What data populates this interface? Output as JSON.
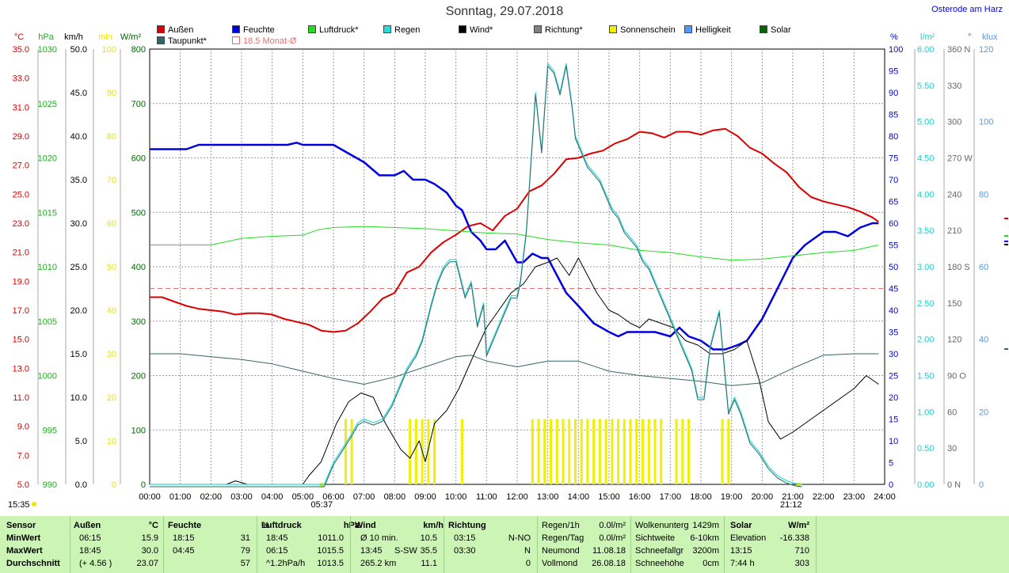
{
  "header": {
    "title": "Sonntag, 29.07.2018",
    "location": "Osterode am Harz"
  },
  "legend": [
    {
      "label": "Außen",
      "color": "#dd0000"
    },
    {
      "label": "Feuchte",
      "color": "#0000dd"
    },
    {
      "label": "Luftdruck*",
      "color": "#22dd22"
    },
    {
      "label": "Regen",
      "color": "#22dddd"
    },
    {
      "label": "Wind*",
      "color": "#000000"
    },
    {
      "label": "Richtung*",
      "color": "#808080"
    },
    {
      "label": "Sonnenschein",
      "color": "#f0f000"
    },
    {
      "label": "Helligkeit",
      "color": "#5599ff"
    },
    {
      "label": "Solar",
      "color": "#006600"
    },
    {
      "label": "Taupunkt*",
      "color": "#336666"
    },
    {
      "label": "18.5 Monat-Ø",
      "color": "#e07070"
    }
  ],
  "axes": {
    "temp_unit": "°C",
    "hpa_unit": "hPa",
    "kmh_unit": "km/h",
    "min_unit": "min",
    "wm2_unit": "W/m²",
    "pct_unit": "%",
    "lm2_unit": "l/m²",
    "deg_unit": "°",
    "klux_unit": "klux",
    "temp_ticks": [
      "35.0",
      "33.0",
      "31.0",
      "29.0",
      "27.0",
      "25.0",
      "23.0",
      "21.0",
      "19.0",
      "17.0",
      "15.0",
      "13.0",
      "11.0",
      "9.0",
      "7.0",
      "5.0"
    ],
    "hpa_ticks": [
      "1030",
      "1025",
      "1020",
      "1015",
      "1010",
      "1005",
      "1000",
      "995",
      "990"
    ],
    "kmh_ticks": [
      "50.0",
      "45.0",
      "40.0",
      "35.0",
      "30.0",
      "25.0",
      "20.0",
      "15.0",
      "10.0",
      "5.0",
      "0.0"
    ],
    "min_ticks": [
      "100",
      "90",
      "80",
      "70",
      "60",
      "50",
      "40",
      "30",
      "20",
      "10",
      "0"
    ],
    "wm2_ticks": [
      "800",
      "700",
      "600",
      "500",
      "400",
      "300",
      "200",
      "100",
      "0"
    ],
    "pct_ticks": [
      "100",
      "95",
      "90",
      "85",
      "80",
      "75",
      "70",
      "65",
      "60",
      "55",
      "50",
      "45",
      "40",
      "35",
      "30",
      "25",
      "20",
      "15",
      "10",
      "5",
      "0"
    ],
    "lm2_ticks": [
      "6.00",
      "5.50",
      "5.00",
      "4.50",
      "4.00",
      "3.50",
      "3.00",
      "2.50",
      "2.00",
      "1.50",
      "1.00",
      "0.50",
      "0.00"
    ],
    "deg_ticks": [
      "360 N",
      "330",
      "300",
      "270 W",
      "240",
      "210",
      "180 S",
      "150",
      "120",
      "90 O",
      "60",
      "30",
      "0 N"
    ],
    "klux_ticks": [
      "120",
      "100",
      "80",
      "60",
      "40",
      "20",
      "0"
    ],
    "time_ticks": [
      "00:00",
      "01:00",
      "02:00",
      "03:00",
      "04:00",
      "05:00",
      "06:00",
      "07:00",
      "08:00",
      "09:00",
      "10:00",
      "11:00",
      "12:00",
      "13:00",
      "14:00",
      "15:00",
      "16:00",
      "17:00",
      "18:00",
      "19:00",
      "20:00",
      "21:00",
      "22:00",
      "23:00",
      "24:00"
    ],
    "sunrise": "05:37",
    "sunset": "21:12",
    "current_time": "15:35"
  },
  "chart_data": {
    "type": "line",
    "x_unit": "hours",
    "series": [
      {
        "name": "Außen",
        "color": "#dd0000",
        "axis": "temp",
        "x": [
          0,
          0.4,
          0.8,
          1.2,
          1.6,
          2,
          2.4,
          2.8,
          3.2,
          3.6,
          4,
          4.4,
          4.8,
          5.2,
          5.6,
          6,
          6.4,
          6.8,
          7.2,
          7.6,
          8,
          8.4,
          8.8,
          9.2,
          9.6,
          10,
          10.4,
          10.8,
          11.2,
          11.6,
          12,
          12.4,
          12.8,
          13.2,
          13.6,
          14,
          14.4,
          14.8,
          15.2,
          15.6,
          16,
          16.4,
          16.8,
          17.2,
          17.6,
          18,
          18.4,
          18.8,
          19.2,
          19.6,
          20,
          20.4,
          20.8,
          21.2,
          21.6,
          22,
          22.4,
          22.8,
          23.2,
          23.6,
          23.8
        ],
        "y": [
          17.9,
          17.9,
          17.6,
          17.3,
          17.1,
          17.0,
          16.9,
          16.7,
          16.8,
          16.8,
          16.7,
          16.4,
          16.2,
          16.0,
          15.6,
          15.5,
          15.6,
          16.1,
          16.9,
          17.8,
          18.2,
          19.6,
          20.0,
          21.0,
          21.7,
          22.2,
          22.8,
          23.0,
          22.5,
          23.5,
          24.0,
          25.2,
          25.6,
          26.4,
          27.4,
          27.5,
          27.8,
          28.0,
          28.5,
          28.8,
          29.3,
          29.2,
          28.9,
          29.3,
          29.3,
          29.1,
          29.4,
          29.5,
          29.0,
          28.2,
          27.8,
          27.1,
          26.5,
          25.5,
          24.8,
          24.5,
          24.3,
          24.1,
          23.8,
          23.4,
          23.1
        ]
      },
      {
        "name": "Feuchte",
        "color": "#0000dd",
        "axis": "pct",
        "x": [
          0,
          0.6,
          1.2,
          1.6,
          2,
          2.5,
          3,
          3.5,
          4,
          4.5,
          4.8,
          5,
          5.5,
          6,
          6.5,
          7,
          7.5,
          8,
          8.3,
          8.6,
          9,
          9.3,
          9.7,
          10,
          10.2,
          10.5,
          10.8,
          11,
          11.3,
          11.6,
          12,
          12.2,
          12.5,
          12.8,
          13,
          13.3,
          13.6,
          14,
          14.5,
          15,
          15.3,
          15.6,
          16,
          16.5,
          17,
          17.3,
          17.6,
          18,
          18.4,
          18.8,
          19.2,
          19.5,
          20,
          20.5,
          21,
          21.4,
          21.8,
          22,
          22.4,
          22.8,
          23.2,
          23.6,
          23.8
        ],
        "y": [
          77,
          77,
          77,
          78,
          78,
          78,
          78,
          78,
          78,
          78,
          78.5,
          78,
          78,
          78,
          76,
          74,
          71,
          71,
          72,
          70,
          70,
          69,
          67,
          64,
          63,
          58,
          56,
          54,
          54,
          56,
          51,
          51,
          53,
          52,
          52,
          48,
          44,
          41,
          37,
          35,
          34,
          35,
          35,
          35,
          34,
          36,
          34,
          33,
          31,
          31,
          32,
          33,
          38,
          45,
          52,
          55,
          57,
          58,
          58,
          57,
          59,
          60,
          60
        ]
      },
      {
        "name": "Luftdruck*",
        "color": "#22dd22",
        "axis": "hpa",
        "x": [
          0,
          1,
          2,
          2.5,
          3,
          4,
          5,
          5.5,
          6,
          7,
          8,
          9,
          10,
          11,
          12,
          13,
          14,
          15,
          16,
          17,
          18,
          19,
          20,
          21,
          22,
          23,
          23.8
        ],
        "y": [
          1012.0,
          1012.0,
          1012.0,
          1012.3,
          1012.6,
          1012.8,
          1012.9,
          1013.4,
          1013.6,
          1013.7,
          1013.6,
          1013.5,
          1013.3,
          1013.1,
          1013.0,
          1012.5,
          1012.2,
          1012.0,
          1011.5,
          1011.3,
          1010.9,
          1010.6,
          1010.7,
          1011.0,
          1011.3,
          1011.5,
          1012.0
        ]
      },
      {
        "name": "Taupunkt*",
        "color": "#336666",
        "axis": "temp",
        "x": [
          0,
          1,
          2,
          3,
          4,
          5,
          6,
          7,
          8,
          9,
          10,
          10.5,
          11,
          12,
          13,
          14,
          15,
          16,
          17,
          18,
          19,
          20,
          21,
          22,
          23,
          23.8
        ],
        "y": [
          14.0,
          14.0,
          13.8,
          13.6,
          13.3,
          12.8,
          12.3,
          11.9,
          12.4,
          13.1,
          13.8,
          13.9,
          13.5,
          13.1,
          13.5,
          13.5,
          12.8,
          12.5,
          12.3,
          12.1,
          11.8,
          12.0,
          13.0,
          13.9,
          14.0,
          14.0
        ]
      },
      {
        "name": "Wind*",
        "color": "#000000",
        "axis": "kmh",
        "x": [
          0,
          2.5,
          2.8,
          3.2,
          5,
          5.2,
          5.6,
          6.1,
          6.5,
          6.9,
          7.3,
          7.7,
          8.2,
          8.5,
          8.8,
          9,
          9.3,
          9.7,
          10.1,
          10.6,
          11,
          11.4,
          11.8,
          12.2,
          12.6,
          13,
          13.3,
          13.7,
          14,
          14.3,
          14.6,
          15,
          15.3,
          15.7,
          16,
          16.3,
          16.7,
          17.1,
          17.5,
          17.9,
          18.3,
          18.7,
          19.1,
          19.5,
          19.9,
          20.2,
          20.6,
          21,
          21.4,
          21.8,
          22.2,
          22.6,
          23,
          23.4,
          23.8
        ],
        "y": [
          0,
          0,
          0.4,
          0,
          0,
          1,
          2.6,
          7,
          9.5,
          10.5,
          10,
          7,
          4,
          3,
          5,
          2.6,
          7,
          8.5,
          11,
          15,
          18,
          20,
          22,
          23,
          25,
          25.5,
          26,
          24,
          26,
          24,
          22,
          20,
          19.5,
          18.5,
          18,
          19,
          18.5,
          18,
          16.5,
          16,
          15,
          15,
          15.5,
          16.5,
          12,
          7.2,
          5.2,
          6,
          7,
          8,
          9,
          10,
          11,
          12.5,
          11.5
        ]
      },
      {
        "name": "Regen",
        "color": "#22dddd",
        "axis": "lm2",
        "x": [
          0,
          5.7,
          6,
          6.3,
          6.6,
          6.8,
          7,
          7.3,
          7.6,
          7.9,
          8.1,
          8.4,
          8.7,
          8.9,
          9.2,
          9.4,
          9.6,
          9.8,
          10,
          10.3,
          10.5,
          10.7,
          10.9,
          11,
          11.2,
          11.4,
          11.6,
          11.8,
          12,
          12.1,
          12.3,
          12.6,
          12.8,
          13,
          13.2,
          13.4,
          13.6,
          13.8,
          13.9,
          14.1,
          14.3,
          14.5,
          14.7,
          14.9,
          15.1,
          15.3,
          15.5,
          15.7,
          15.9,
          16.1,
          16.3,
          16.5,
          16.7,
          16.9,
          17.1,
          17.3,
          17.5,
          17.7,
          17.9,
          18.1,
          18.3,
          18.6,
          18.9,
          19.1,
          19.3,
          19.6,
          19.9,
          20.2,
          20.5,
          20.8,
          21.1,
          21.3
        ],
        "y": [
          0,
          0,
          0.3,
          0.5,
          0.7,
          0.85,
          0.9,
          0.85,
          0.9,
          1.1,
          1.3,
          1.6,
          1.8,
          2.0,
          2.5,
          2.8,
          3.0,
          3.1,
          3.1,
          2.6,
          2.8,
          2.2,
          2.5,
          1.8,
          2.0,
          2.2,
          2.4,
          2.6,
          2.6,
          2.8,
          3.5,
          5.4,
          4.6,
          5.8,
          5.7,
          5.4,
          5.8,
          5.2,
          4.8,
          4.6,
          4.4,
          4.3,
          4.2,
          4.0,
          3.8,
          3.7,
          3.5,
          3.4,
          3.3,
          3.1,
          3.0,
          2.8,
          2.6,
          2.4,
          2.2,
          2.0,
          1.8,
          1.6,
          1.2,
          1.2,
          1.9,
          2.4,
          1.0,
          1.2,
          1.0,
          0.6,
          0.45,
          0.25,
          0.12,
          0.05,
          0.01,
          0
        ]
      }
    ],
    "sunshine_bars": {
      "name": "Sonnenschein",
      "axis": "min",
      "x": [
        6.4,
        6.6,
        8.5,
        8.7,
        8.9,
        9.1,
        9.3,
        10.2,
        12.5,
        12.7,
        12.9,
        13.1,
        13.3,
        13.5,
        13.7,
        13.9,
        14.1,
        14.3,
        14.5,
        14.7,
        14.9,
        15.1,
        15.3,
        15.5,
        15.7,
        15.9,
        16.1,
        16.3,
        16.5,
        16.7,
        17.2,
        17.4,
        17.6,
        18.7,
        18.9
      ],
      "y": [
        15,
        15,
        15,
        15,
        15,
        15,
        15,
        15,
        15,
        15,
        15,
        15,
        15,
        15,
        15,
        15,
        15,
        15,
        15,
        15,
        15,
        15,
        15,
        15,
        15,
        15,
        15,
        15,
        15,
        15,
        15,
        15,
        15,
        15,
        15
      ]
    },
    "reference_line": {
      "name": "18.5 Monat-Ø",
      "axis": "temp",
      "y": 18.5
    },
    "xlim": [
      0,
      24
    ],
    "ylims": {
      "temp": [
        5,
        35
      ],
      "hpa": [
        990,
        1030
      ],
      "kmh": [
        0,
        50
      ],
      "min": [
        0,
        100
      ],
      "wm2": [
        0,
        800
      ],
      "pct": [
        0,
        100
      ],
      "lm2": [
        0,
        6
      ],
      "deg": [
        0,
        360
      ],
      "klux": [
        0,
        120
      ]
    },
    "grid": true
  },
  "stats": {
    "headers": [
      {
        "label": "Sensor",
        "unit": ""
      },
      {
        "label": "Außen",
        "unit": "°C"
      },
      {
        "label": "Feuchte",
        "unit": "%"
      },
      {
        "label": "Luftdruck",
        "unit": "hPa"
      },
      {
        "label": "Wind",
        "unit": "km/h"
      },
      {
        "label": "Richtung",
        "unit": ""
      }
    ],
    "rows": [
      {
        "name": "MinWert",
        "aussen_time": "06:15",
        "aussen_val": "15.9",
        "feuchte_time": "18:15",
        "feuchte_val": "31",
        "druck_time": "18:45",
        "druck_val": "1011.0",
        "wind_time": "Ø 10 min.",
        "wind_dir": "",
        "wind_val": "10.5",
        "richt_time": "03:15",
        "richt_val": "N-NO"
      },
      {
        "name": "MaxWert",
        "aussen_time": "18:45",
        "aussen_val": "30.0",
        "feuchte_time": "04:45",
        "feuchte_val": "79",
        "druck_time": "06:15",
        "druck_val": "1015.5",
        "wind_time": "13:45",
        "wind_dir": "S-SW",
        "wind_val": "35.5",
        "richt_time": "03:30",
        "richt_val": "N"
      },
      {
        "name": "Durchschnitt",
        "aussen_time": "(+ 4.56 )",
        "aussen_val": "23.07",
        "feuchte_time": "",
        "feuchte_val": "57",
        "druck_time": "^1.2hPa/h",
        "druck_val": "1013.5",
        "wind_time": "265.2 km",
        "wind_dir": "",
        "wind_val": "11.1",
        "richt_time": "",
        "richt_val": "0"
      }
    ],
    "extra": [
      [
        "Regen/1h",
        "0.0l/m²",
        "Wolkenunterg",
        "1429m",
        "Solar",
        "W/m²"
      ],
      [
        "Regen/Tag",
        "0.0l/m²",
        "Sichtweite",
        "6-10km",
        "Elevation",
        "-16.338"
      ],
      [
        "Neumond",
        "11.08.18",
        "Schneefallgr",
        "3200m",
        "13:15",
        "710"
      ],
      [
        "Vollmond",
        "26.08.18",
        "Schneehöhe",
        "0cm",
        "7:44 h",
        "303"
      ]
    ]
  }
}
